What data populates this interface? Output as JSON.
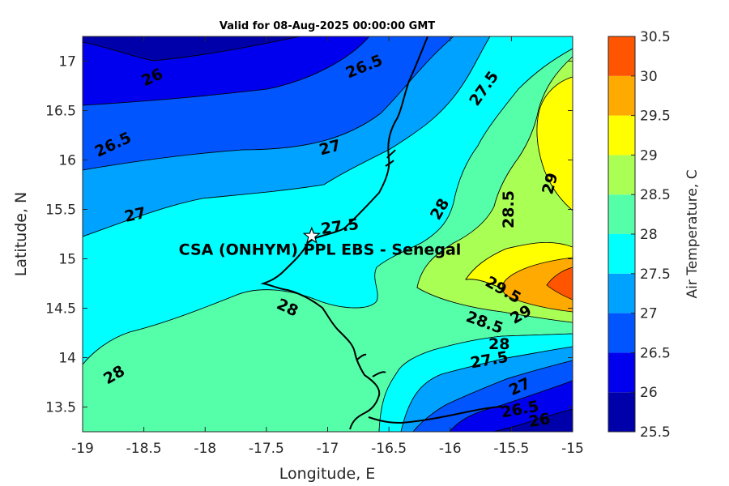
{
  "chart_data": {
    "type": "contour",
    "title": "Valid for 08-Aug-2025 00:00:00 GMT",
    "xlabel": "Longitude, E",
    "ylabel": "Latitude, N",
    "xlim": [
      -19,
      -15
    ],
    "ylim": [
      13.25,
      17.25
    ],
    "x_ticks": [
      "-19",
      "-18.5",
      "-18",
      "-17.5",
      "-17",
      "-16.5",
      "-16",
      "-15.5",
      "-15"
    ],
    "y_ticks": [
      "13.5",
      "14",
      "14.5",
      "15",
      "15.5",
      "16",
      "16.5",
      "17"
    ],
    "colorbar": {
      "label": "Air Temperature, C",
      "levels": [
        25.5,
        26,
        26.5,
        27,
        27.5,
        28,
        28.5,
        29,
        29.5,
        30,
        30.5
      ],
      "tick_labels": [
        "25.5",
        "26",
        "26.5",
        "27",
        "27.5",
        "28",
        "28.5",
        "29",
        "29.5",
        "30",
        "30.5"
      ],
      "colors": [
        "#0000aa",
        "#0000ee",
        "#0055ff",
        "#00a2ff",
        "#00ffff",
        "#55ffaa",
        "#aaff55",
        "#ffff00",
        "#ffaa00",
        "#ff5500",
        "#ff0000"
      ]
    },
    "contour_labels": [
      {
        "text": "26",
        "lon": -18.43,
        "lat": 16.83,
        "angle": -25
      },
      {
        "text": "26.5",
        "lon": -16.7,
        "lat": 16.94,
        "angle": -22
      },
      {
        "text": "26.5",
        "lon": -18.75,
        "lat": 16.15,
        "angle": -25
      },
      {
        "text": "27",
        "lon": -16.98,
        "lat": 16.12,
        "angle": -15
      },
      {
        "text": "27.5",
        "lon": -15.72,
        "lat": 16.72,
        "angle": -55
      },
      {
        "text": "27",
        "lon": -18.57,
        "lat": 15.44,
        "angle": -12
      },
      {
        "text": "27.5",
        "lon": -16.9,
        "lat": 15.32,
        "angle": -8
      },
      {
        "text": "28",
        "lon": -16.08,
        "lat": 15.5,
        "angle": -60
      },
      {
        "text": "28.5",
        "lon": -15.52,
        "lat": 15.5,
        "angle": -90
      },
      {
        "text": "29",
        "lon": -15.18,
        "lat": 15.76,
        "angle": -75
      },
      {
        "text": "28",
        "lon": -17.33,
        "lat": 14.5,
        "angle": 25
      },
      {
        "text": "28",
        "lon": -18.74,
        "lat": 13.82,
        "angle": -30
      },
      {
        "text": "29.5",
        "lon": -15.57,
        "lat": 14.68,
        "angle": 30
      },
      {
        "text": "29",
        "lon": -15.42,
        "lat": 14.43,
        "angle": -30
      },
      {
        "text": "28.5",
        "lon": -15.72,
        "lat": 14.35,
        "angle": 20
      },
      {
        "text": "28",
        "lon": -15.6,
        "lat": 14.13,
        "angle": 0
      },
      {
        "text": "27.5",
        "lon": -15.68,
        "lat": 13.97,
        "angle": -10
      },
      {
        "text": "27",
        "lon": -15.43,
        "lat": 13.7,
        "angle": -25
      },
      {
        "text": "26.5",
        "lon": -15.43,
        "lat": 13.47,
        "angle": -10
      },
      {
        "text": "26",
        "lon": -15.27,
        "lat": 13.36,
        "angle": -10
      }
    ],
    "site": {
      "name": "CSA (ONHYM) PPL EBS  - Senegal",
      "lon": -17.13,
      "lat": 15.23
    }
  }
}
